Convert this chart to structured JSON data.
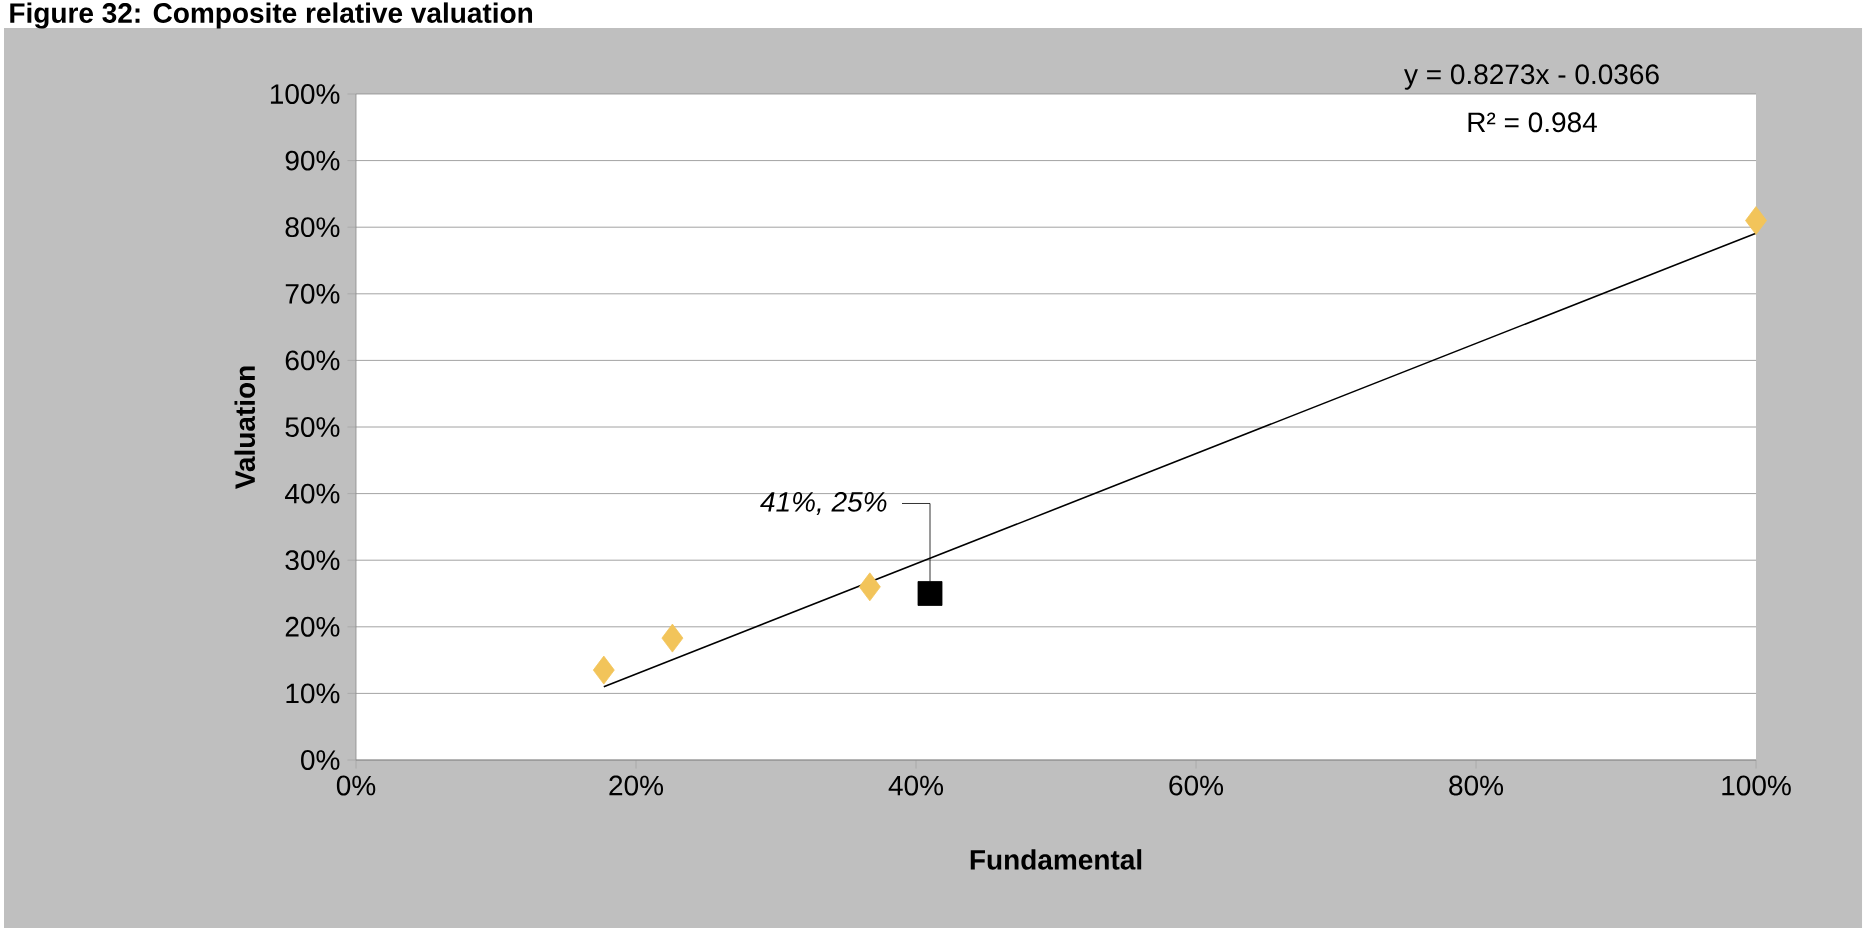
{
  "chart_data": {
    "type": "scatter",
    "title": "Figure 32: Composite relative valuation",
    "xlabel": "Fundamental",
    "ylabel": "Valuation",
    "series": [
      {
        "color": "#f2c45a",
        "marker": "diamond",
        "x": [
          17.7,
          22.6,
          36.7,
          100
        ],
        "values": [
          13.5,
          18.3,
          26,
          81
        ]
      },
      {
        "color": "#000000",
        "marker": "square",
        "x": [
          41
        ],
        "values": [
          25
        ]
      },
      {
        "type": "line",
        "color": "#000000",
        "marker": "none",
        "x": [
          17.7,
          100
        ],
        "values": [
          11.0,
          79.1
        ]
      }
    ],
    "xlim": [
      0,
      100
    ],
    "ylim": [
      0,
      100
    ],
    "xticks": [
      {
        "value": 0,
        "label": "0%"
      },
      {
        "value": 20,
        "label": "20%"
      },
      {
        "value": 40,
        "label": "40%"
      },
      {
        "value": 60,
        "label": "60%"
      },
      {
        "value": 80,
        "label": "80%"
      },
      {
        "value": 100,
        "label": "100%"
      }
    ],
    "yticks": [
      {
        "value": 0,
        "label": "0%"
      },
      {
        "value": 10,
        "label": "10%"
      },
      {
        "value": 20,
        "label": "20%"
      },
      {
        "value": 30,
        "label": "30%"
      },
      {
        "value": 40,
        "label": "40%"
      },
      {
        "value": 50,
        "label": "50%"
      },
      {
        "value": 60,
        "label": "60%"
      },
      {
        "value": 70,
        "label": "70%"
      },
      {
        "value": 80,
        "label": "80%"
      },
      {
        "value": 90,
        "label": "90%"
      },
      {
        "value": 100,
        "label": "100%"
      }
    ],
    "grid": "y",
    "annotations": [
      {
        "text": "41%, 25%",
        "x": 41,
        "y": 25
      },
      "y = 0.8273x - 0.0366",
      "R² = 0.984"
    ]
  }
}
